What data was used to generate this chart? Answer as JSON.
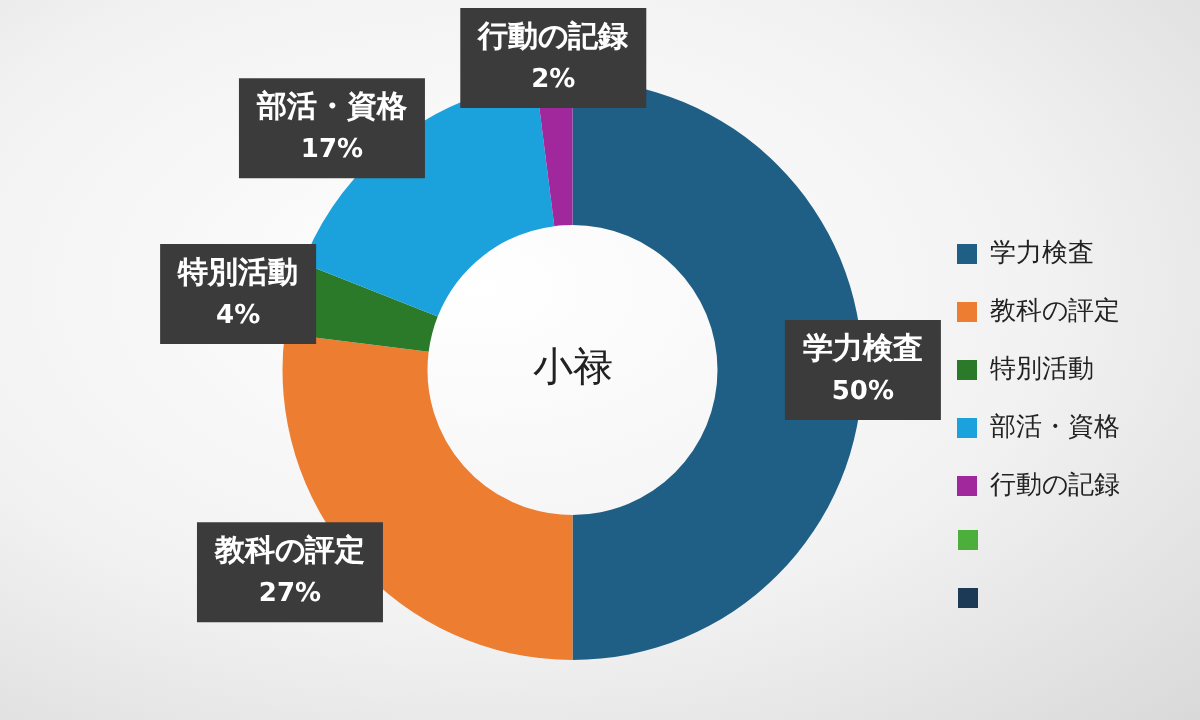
{
  "chart_data": {
    "type": "donut",
    "categories": [
      "学力検査",
      "教科の評定",
      "特別活動",
      "部活・資格",
      "行動の記録"
    ],
    "values": [
      50,
      27,
      4,
      17,
      2
    ],
    "value_labels": [
      "50%",
      "27%",
      "4%",
      "17%",
      "2%"
    ],
    "colors": [
      "#1f5f86",
      "#ed7d31",
      "#2a7a2a",
      "#1ba1dc",
      "#a0289c"
    ],
    "annotations": [
      "小禄"
    ],
    "legend": "right"
  }
}
